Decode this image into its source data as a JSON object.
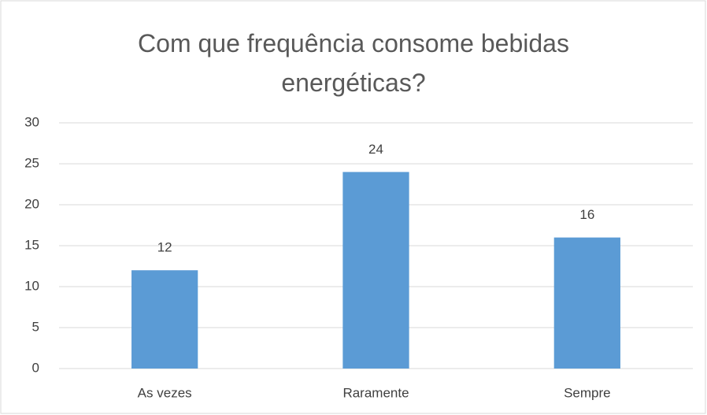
{
  "chart_data": {
    "type": "bar",
    "title": "Com que frequência consome bebidas energéticas?",
    "categories": [
      "As vezes",
      "Raramente",
      "Sempre"
    ],
    "values": [
      12,
      24,
      16
    ],
    "color": "#5b9bd5",
    "ylim": [
      0,
      30
    ],
    "yticks": [
      0,
      5,
      10,
      15,
      20,
      25,
      30
    ],
    "grid": true
  }
}
